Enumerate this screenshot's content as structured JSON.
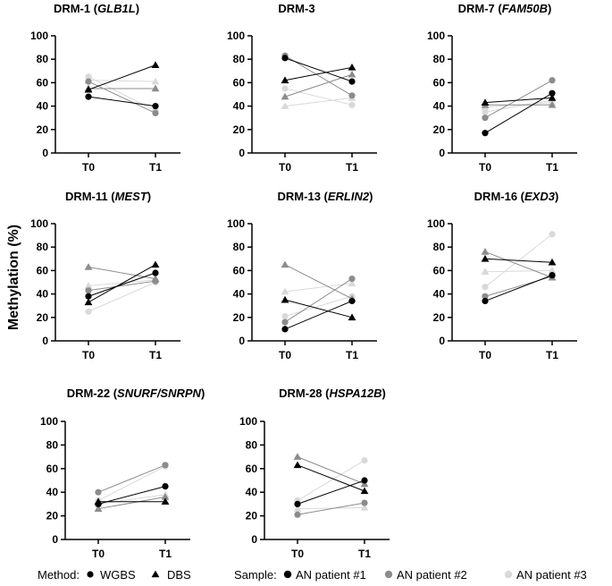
{
  "y_axis_label": "Methylation (%)",
  "legend": {
    "method_label": "Method:",
    "methods": [
      {
        "name": "WGBS",
        "marker": "circle"
      },
      {
        "name": "DBS",
        "marker": "triangle"
      }
    ],
    "sample_label": "Sample:",
    "samples": [
      {
        "name": "AN patient #1",
        "color": "#000000"
      },
      {
        "name": "AN patient #2",
        "color": "#8c8c8c"
      },
      {
        "name": "AN patient #3",
        "color": "#d9d9d9"
      }
    ]
  },
  "chart_data": [
    {
      "type": "line",
      "title": "DRM-1 (GLB1L)",
      "title_parts": [
        {
          "t": "DRM-1 ("
        },
        {
          "t": "GLB1L",
          "i": true
        },
        {
          "t": ")"
        }
      ],
      "categories": [
        "T0",
        "T1"
      ],
      "ylim": [
        0,
        100
      ],
      "yticks": [
        0,
        20,
        40,
        60,
        80,
        100
      ],
      "series": [
        {
          "sample": "AN patient #1",
          "method": "WGBS",
          "values": [
            48,
            40
          ]
        },
        {
          "sample": "AN patient #1",
          "method": "DBS",
          "values": [
            54,
            75
          ]
        },
        {
          "sample": "AN patient #2",
          "method": "WGBS",
          "values": [
            61,
            34
          ]
        },
        {
          "sample": "AN patient #2",
          "method": "DBS",
          "values": [
            55,
            55
          ]
        },
        {
          "sample": "AN patient #3",
          "method": "WGBS",
          "values": [
            65,
            36
          ]
        },
        {
          "sample": "AN patient #3",
          "method": "DBS",
          "values": [
            62,
            61
          ]
        }
      ]
    },
    {
      "type": "line",
      "title": "DRM-3",
      "title_parts": [
        {
          "t": "DRM-3"
        }
      ],
      "categories": [
        "T0",
        "T1"
      ],
      "ylim": [
        0,
        100
      ],
      "yticks": [
        0,
        20,
        40,
        60,
        80,
        100
      ],
      "series": [
        {
          "sample": "AN patient #1",
          "method": "WGBS",
          "values": [
            81,
            61
          ]
        },
        {
          "sample": "AN patient #1",
          "method": "DBS",
          "values": [
            62,
            73
          ]
        },
        {
          "sample": "AN patient #2",
          "method": "WGBS",
          "values": [
            83,
            49
          ]
        },
        {
          "sample": "AN patient #2",
          "method": "DBS",
          "values": [
            48,
            67
          ]
        },
        {
          "sample": "AN patient #3",
          "method": "WGBS",
          "values": [
            55,
            41
          ]
        },
        {
          "sample": "AN patient #3",
          "method": "DBS",
          "values": [
            40,
            47
          ]
        }
      ]
    },
    {
      "type": "line",
      "title": "DRM-7 (FAM50B)",
      "title_parts": [
        {
          "t": "DRM-7 ("
        },
        {
          "t": "FAM50B",
          "i": true
        },
        {
          "t": ")"
        }
      ],
      "categories": [
        "T0",
        "T1"
      ],
      "ylim": [
        0,
        100
      ],
      "yticks": [
        0,
        20,
        40,
        60,
        80,
        100
      ],
      "series": [
        {
          "sample": "AN patient #1",
          "method": "WGBS",
          "values": [
            17,
            51
          ]
        },
        {
          "sample": "AN patient #1",
          "method": "DBS",
          "values": [
            43,
            47
          ]
        },
        {
          "sample": "AN patient #2",
          "method": "WGBS",
          "values": [
            30,
            62
          ]
        },
        {
          "sample": "AN patient #2",
          "method": "DBS",
          "values": [
            41,
            41
          ]
        },
        {
          "sample": "AN patient #3",
          "method": "WGBS",
          "values": [
            35,
            45
          ]
        },
        {
          "sample": "AN patient #3",
          "method": "DBS",
          "values": [
            39,
            43
          ]
        }
      ]
    },
    {
      "type": "line",
      "title": "DRM-11 (MEST)",
      "title_parts": [
        {
          "t": "DRM-11 ("
        },
        {
          "t": "MEST",
          "i": true
        },
        {
          "t": ")"
        }
      ],
      "categories": [
        "T0",
        "T1"
      ],
      "ylim": [
        0,
        100
      ],
      "yticks": [
        0,
        20,
        40,
        60,
        80,
        100
      ],
      "series": [
        {
          "sample": "AN patient #1",
          "method": "WGBS",
          "values": [
            38,
            58
          ]
        },
        {
          "sample": "AN patient #1",
          "method": "DBS",
          "values": [
            33,
            65
          ]
        },
        {
          "sample": "AN patient #2",
          "method": "WGBS",
          "values": [
            43,
            51
          ]
        },
        {
          "sample": "AN patient #2",
          "method": "DBS",
          "values": [
            63,
            53
          ]
        },
        {
          "sample": "AN patient #3",
          "method": "WGBS",
          "values": [
            25,
            50
          ]
        },
        {
          "sample": "AN patient #3",
          "method": "DBS",
          "values": [
            47,
            52
          ]
        }
      ]
    },
    {
      "type": "line",
      "title": "DRM-13 (ERLIN2)",
      "title_parts": [
        {
          "t": "DRM-13 ("
        },
        {
          "t": "ERLIN2",
          "i": true
        },
        {
          "t": ")"
        }
      ],
      "categories": [
        "T0",
        "T1"
      ],
      "ylim": [
        0,
        100
      ],
      "yticks": [
        0,
        20,
        40,
        60,
        80,
        100
      ],
      "series": [
        {
          "sample": "AN patient #1",
          "method": "WGBS",
          "values": [
            10,
            34
          ]
        },
        {
          "sample": "AN patient #1",
          "method": "DBS",
          "values": [
            35,
            20
          ]
        },
        {
          "sample": "AN patient #2",
          "method": "WGBS",
          "values": [
            16,
            53
          ]
        },
        {
          "sample": "AN patient #2",
          "method": "DBS",
          "values": [
            65,
            36
          ]
        },
        {
          "sample": "AN patient #3",
          "method": "WGBS",
          "values": [
            21,
            38
          ]
        },
        {
          "sample": "AN patient #3",
          "method": "DBS",
          "values": [
            42,
            49
          ]
        }
      ]
    },
    {
      "type": "line",
      "title": "DRM-16 (EXD3)",
      "title_parts": [
        {
          "t": "DRM-16 ("
        },
        {
          "t": "EXD3",
          "i": true
        },
        {
          "t": ")"
        }
      ],
      "categories": [
        "T0",
        "T1"
      ],
      "ylim": [
        0,
        100
      ],
      "yticks": [
        0,
        20,
        40,
        60,
        80,
        100
      ],
      "series": [
        {
          "sample": "AN patient #1",
          "method": "WGBS",
          "values": [
            34,
            56
          ]
        },
        {
          "sample": "AN patient #1",
          "method": "DBS",
          "values": [
            70,
            67
          ]
        },
        {
          "sample": "AN patient #2",
          "method": "WGBS",
          "values": [
            38,
            55
          ]
        },
        {
          "sample": "AN patient #2",
          "method": "DBS",
          "values": [
            76,
            54
          ]
        },
        {
          "sample": "AN patient #3",
          "method": "WGBS",
          "values": [
            46,
            91
          ]
        },
        {
          "sample": "AN patient #3",
          "method": "DBS",
          "values": [
            59,
            60
          ]
        }
      ]
    },
    {
      "type": "line",
      "title": "DRM-22 (SNURF/SNRPN)",
      "title_parts": [
        {
          "t": "DRM-22 ("
        },
        {
          "t": "SNURF/SNRPN",
          "i": true
        },
        {
          "t": ")"
        }
      ],
      "categories": [
        "T0",
        "T1"
      ],
      "ylim": [
        0,
        100
      ],
      "yticks": [
        0,
        20,
        40,
        60,
        80,
        100
      ],
      "series": [
        {
          "sample": "AN patient #1",
          "method": "WGBS",
          "values": [
            30,
            45
          ]
        },
        {
          "sample": "AN patient #1",
          "method": "DBS",
          "values": [
            32,
            32
          ]
        },
        {
          "sample": "AN patient #2",
          "method": "WGBS",
          "values": [
            40,
            63
          ]
        },
        {
          "sample": "AN patient #2",
          "method": "DBS",
          "values": [
            26,
            36
          ]
        },
        {
          "sample": "AN patient #3",
          "method": "WGBS",
          "values": [
            33,
            62
          ]
        },
        {
          "sample": "AN patient #3",
          "method": "DBS",
          "values": [
            30,
            38
          ]
        }
      ]
    },
    {
      "type": "line",
      "title": "DRM-28 (HSPA12B)",
      "title_parts": [
        {
          "t": "DRM-28 ("
        },
        {
          "t": "HSPA12B",
          "i": true
        },
        {
          "t": ")"
        }
      ],
      "categories": [
        "T0",
        "T1"
      ],
      "ylim": [
        0,
        100
      ],
      "yticks": [
        0,
        20,
        40,
        60,
        80,
        100
      ],
      "series": [
        {
          "sample": "AN patient #1",
          "method": "WGBS",
          "values": [
            30,
            50
          ]
        },
        {
          "sample": "AN patient #1",
          "method": "DBS",
          "values": [
            63,
            41
          ]
        },
        {
          "sample": "AN patient #2",
          "method": "WGBS",
          "values": [
            21,
            31
          ]
        },
        {
          "sample": "AN patient #2",
          "method": "DBS",
          "values": [
            70,
            47
          ]
        },
        {
          "sample": "AN patient #3",
          "method": "WGBS",
          "values": [
            33,
            67
          ]
        },
        {
          "sample": "AN patient #3",
          "method": "DBS",
          "values": [
            26,
            27
          ]
        }
      ]
    }
  ]
}
